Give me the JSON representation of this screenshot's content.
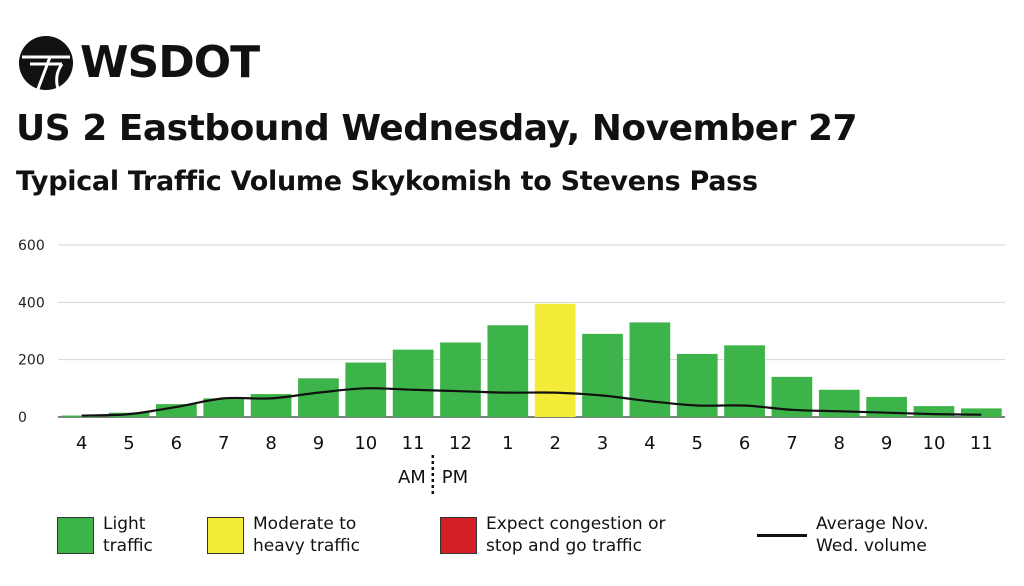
{
  "brand": {
    "name": "WSDOT"
  },
  "header": {
    "title": "US 2 Eastbound Wednesday, November 27",
    "subtitle": "Typical Traffic Volume Skykomish to Stevens Pass"
  },
  "colors": {
    "light": "#3db449",
    "moderate": "#f5ec3a",
    "congestion": "#d32027",
    "line": "#111111"
  },
  "chart_data": {
    "type": "bar",
    "categories": [
      "4",
      "5",
      "6",
      "7",
      "8",
      "9",
      "10",
      "11",
      "12",
      "1",
      "2",
      "3",
      "4",
      "5",
      "6",
      "7",
      "8",
      "9",
      "10",
      "11"
    ],
    "ampm": {
      "am": "AM",
      "pm": "PM"
    },
    "series": [
      {
        "type": "bar",
        "values": [
          5,
          15,
          45,
          65,
          80,
          135,
          190,
          235,
          260,
          320,
          395,
          290,
          330,
          220,
          250,
          140,
          95,
          70,
          38,
          30
        ],
        "levels": [
          "light",
          "light",
          "light",
          "light",
          "light",
          "light",
          "light",
          "light",
          "light",
          "light",
          "moderate",
          "light",
          "light",
          "light",
          "light",
          "light",
          "light",
          "light",
          "light",
          "light"
        ]
      },
      {
        "type": "line",
        "name": "Average Nov. Wed. volume",
        "values": [
          5,
          10,
          35,
          65,
          65,
          85,
          100,
          95,
          90,
          85,
          85,
          75,
          55,
          40,
          40,
          25,
          20,
          15,
          10,
          8
        ]
      }
    ],
    "yticks": [
      0,
      200,
      400,
      600
    ],
    "ylim": [
      0,
      600
    ],
    "grid": true
  },
  "legend": {
    "light": "Light\ntraffic",
    "moderate": "Moderate to\nheavy traffic",
    "congestion": "Expect congestion or\nstop and go traffic",
    "average": "Average Nov.\nWed. volume"
  }
}
